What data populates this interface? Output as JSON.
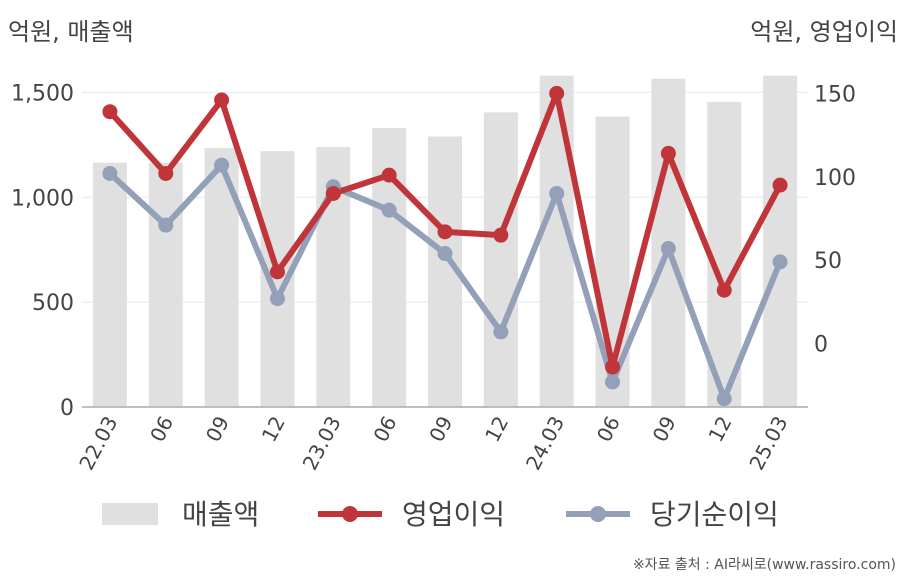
{
  "units": {
    "left": "억원, 매출액",
    "right": "억원, 영업이익"
  },
  "source": "※자료 출처 : AI라씨로(www.rassiro.com)",
  "chart_data": {
    "type": "bar+line",
    "categories": [
      "22.03",
      "06",
      "09",
      "12",
      "23.03",
      "06",
      "09",
      "12",
      "24.03",
      "06",
      "09",
      "12",
      "25.03"
    ],
    "left_axis": {
      "ylim": [
        0,
        1750
      ],
      "ticks": [
        0,
        500,
        1000,
        1500
      ],
      "tick_labels": [
        "0",
        "500",
        "1,000",
        "1,500"
      ]
    },
    "right_axis": {
      "ylim": [
        -38,
        182
      ],
      "ticks": [
        0,
        50,
        100,
        150
      ],
      "tick_labels": [
        "0",
        "50",
        "100",
        "150"
      ]
    },
    "series": [
      {
        "name": "매출액",
        "kind": "bar",
        "axis": "left",
        "color": "#e0e0e0",
        "values": [
          1165,
          1165,
          1235,
          1220,
          1240,
          1330,
          1290,
          1405,
          1580,
          1385,
          1565,
          1455,
          1580
        ]
      },
      {
        "name": "영업이익",
        "kind": "line",
        "axis": "right",
        "color": "#c0353a",
        "values": [
          139,
          102,
          146,
          43,
          90,
          101,
          67,
          65,
          150,
          -14,
          114,
          32,
          95
        ]
      },
      {
        "name": "당기순이익",
        "kind": "line",
        "axis": "right",
        "color": "#94a0b8",
        "values": [
          102,
          71,
          107,
          27,
          94,
          80,
          54,
          7,
          90,
          -23,
          57,
          -33,
          49
        ]
      }
    ],
    "grid": "horizontal",
    "legend": "bottom"
  }
}
